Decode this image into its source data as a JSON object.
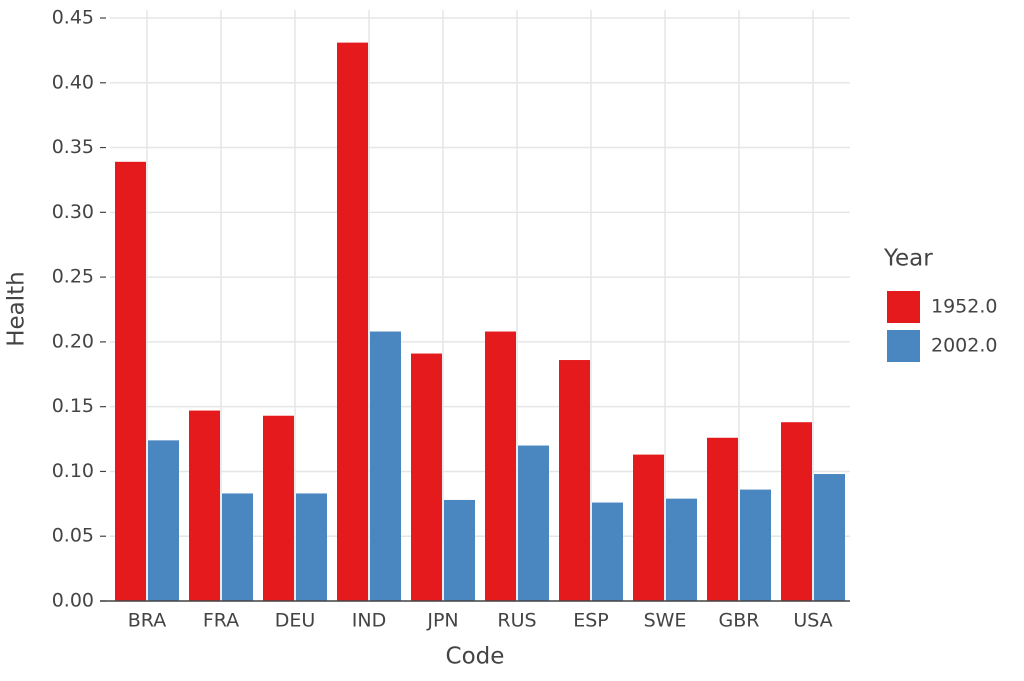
{
  "chart_data": {
    "type": "bar",
    "x_label": "Code",
    "y_label": "Health",
    "legend_title": "Year",
    "categories": [
      "BRA",
      "FRA",
      "DEU",
      "IND",
      "JPN",
      "RUS",
      "ESP",
      "SWE",
      "GBR",
      "USA"
    ],
    "series": [
      {
        "name": "1952.0",
        "color": "#e41a1c",
        "values": [
          0.339,
          0.147,
          0.143,
          0.431,
          0.191,
          0.208,
          0.186,
          0.113,
          0.126,
          0.138
        ]
      },
      {
        "name": "2002.0",
        "color": "#4a86c0",
        "values": [
          0.124,
          0.083,
          0.083,
          0.208,
          0.078,
          0.12,
          0.076,
          0.079,
          0.086,
          0.098
        ]
      }
    ],
    "ylim": [
      0,
      0.45
    ],
    "yticks": [
      {
        "value": 0,
        "label": "0.00"
      },
      {
        "value": 0.05,
        "label": "0.05"
      },
      {
        "value": 0.1,
        "label": "0.10"
      },
      {
        "value": 0.15,
        "label": "0.15"
      },
      {
        "value": 0.2,
        "label": "0.20"
      },
      {
        "value": 0.25,
        "label": "0.25"
      },
      {
        "value": 0.3,
        "label": "0.30"
      },
      {
        "value": 0.35,
        "label": "0.35"
      },
      {
        "value": 0.4,
        "label": "0.40"
      },
      {
        "value": 0.45,
        "label": "0.45"
      }
    ],
    "grid": true
  }
}
